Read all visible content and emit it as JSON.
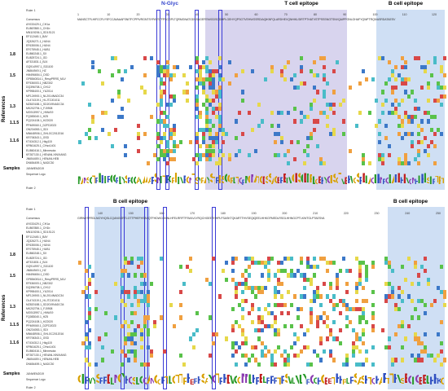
{
  "panel1": {
    "nglyc_label": "N-Glyc",
    "epitopes": [
      "T cell epitope",
      "B cell epitope"
    ],
    "ruler_top": "Ruler 1",
    "ruler_ticks": [
      "1",
      "10",
      "20",
      "30",
      "40",
      "50",
      "60",
      "70",
      "80",
      "90",
      "100",
      "110",
      "120"
    ],
    "consensus_label": "Consensus",
    "consensus_seq": "MANSCTFLHIFCCFLYSFCCAVAAAFSNITFCPPIVRGNTSYPAYSTFPSCGPLTQRMGNATGDSSAGEFEIWGDSCDMPLGEHYQPSGTVEHWGSRDIAQIKNFQLARDHEVQNHIKLSIRTPTHATVSTPSSSNGTSNVQAIPPGNLGHAFYQWFTRQIVASRDATAESV",
    "bottom_ruler_label": "Ruler 2",
    "sequence_logo_label": "Sequence Logo",
    "logo_text": "MANSCTFLHIFCCFLYSFCCAVAAAFSNITFCPPIVRGNTSYPAYSTFPSCGPLTQRMGNATGDSSAGEFEIWGDSCDMPLGEHYQPSGTVEHWGSRDIAQIKNFQLARDHEVQNHIKLSIRTPT"
  },
  "panel2": {
    "epitopes": [
      "B cell epitope",
      "B cell epitope"
    ],
    "ruler_top": "Ruler 1",
    "ruler_ticks": [
      "140",
      "150",
      "160",
      "170",
      "180",
      "190",
      "200",
      "210",
      "220",
      "230",
      "240",
      "250"
    ],
    "consensus_label": "Consensus",
    "consensus_seq": "GIRWYSFRDLNGYHQSLCQANGGRTLGTTPHEFHSAYQTFHDWCGNNLHFELRRFTFSWLVLYRQCHGEETHHPLFSASKTQKARTTHVSEQIQEELHHKGFMEDLRSGLHHNGCPTLKWTGLPTAESVA",
    "bottom_ruler_label": "Ruler 2",
    "sequence_logo_label": "Sequence Logo",
    "logo_text": "GIRWYSFRDLNGYHQSLCQANGGRTLGTTPHEFHSAYQTFHDWCGNNLHFELRRFTFSWLVLYRQCHGEETHHPLFSASKTQKARTTHVSEQIQEELHHKG"
  },
  "rows": [
    "AY033429.1_CH1a",
    "EU867880.1_CH1b",
    "MN119206.1_SD1S121",
    "EF112445.1_BAY",
    "JQ326271.1_HUN4",
    "EF635006.1_HUN4",
    "EF075945.1_HUB1",
    "EU860248.1_SX",
    "EU825724.1_GD",
    "AF331831.1_BJ4",
    "GQ914997.1_SD1100",
    "JN864949.1_HZ",
    "HM496654.1_DSD",
    "GP8540814.1_RespPRRS_MLV",
    "EF536003.1_NB2302",
    "DQ396708.1_CH12",
    "KP998400.1_YU2014",
    "MF124900.1_NL2014NADC34",
    "OL474319.1_HLJTZJ01011",
    "MZ820188.1_SD2019NADC34",
    "MK202794.1_FJ0908",
    "MG913997.1_HNW19",
    "FQ083040.1_HZ5",
    "PQ224108.1_HZ2020",
    "PP469060.1_DZFD2023",
    "ON234053.1_SDI",
    "MN648906.1_SHLGC2012016",
    "KR706343.1_GSD",
    "KT434312.1_Hkg115",
    "KP861625.1_CHsx1401",
    "EU860416.1_Minnesota",
    "KF287130.1_HENAN-XINXIANG",
    "JN654459.1_HENAN-HEB",
    "DN654459.1_NADC30"
  ],
  "groups": [
    "1.8",
    "1.5",
    "1.3",
    "1.1.5",
    "1.1.6"
  ],
  "references_label": "References",
  "samples_label": "Samples",
  "sample_row": "JUNWEN2019",
  "colors": {
    "purple_shade": "#d8d4ee",
    "blue_shade": "#cfdff4",
    "box": "#3b3bd6",
    "yellow": "#e6d84a",
    "green": "#59c24a",
    "blue": "#3c78c8",
    "red": "#d84848",
    "orange": "#f0a040",
    "cyan": "#49bcc8"
  }
}
